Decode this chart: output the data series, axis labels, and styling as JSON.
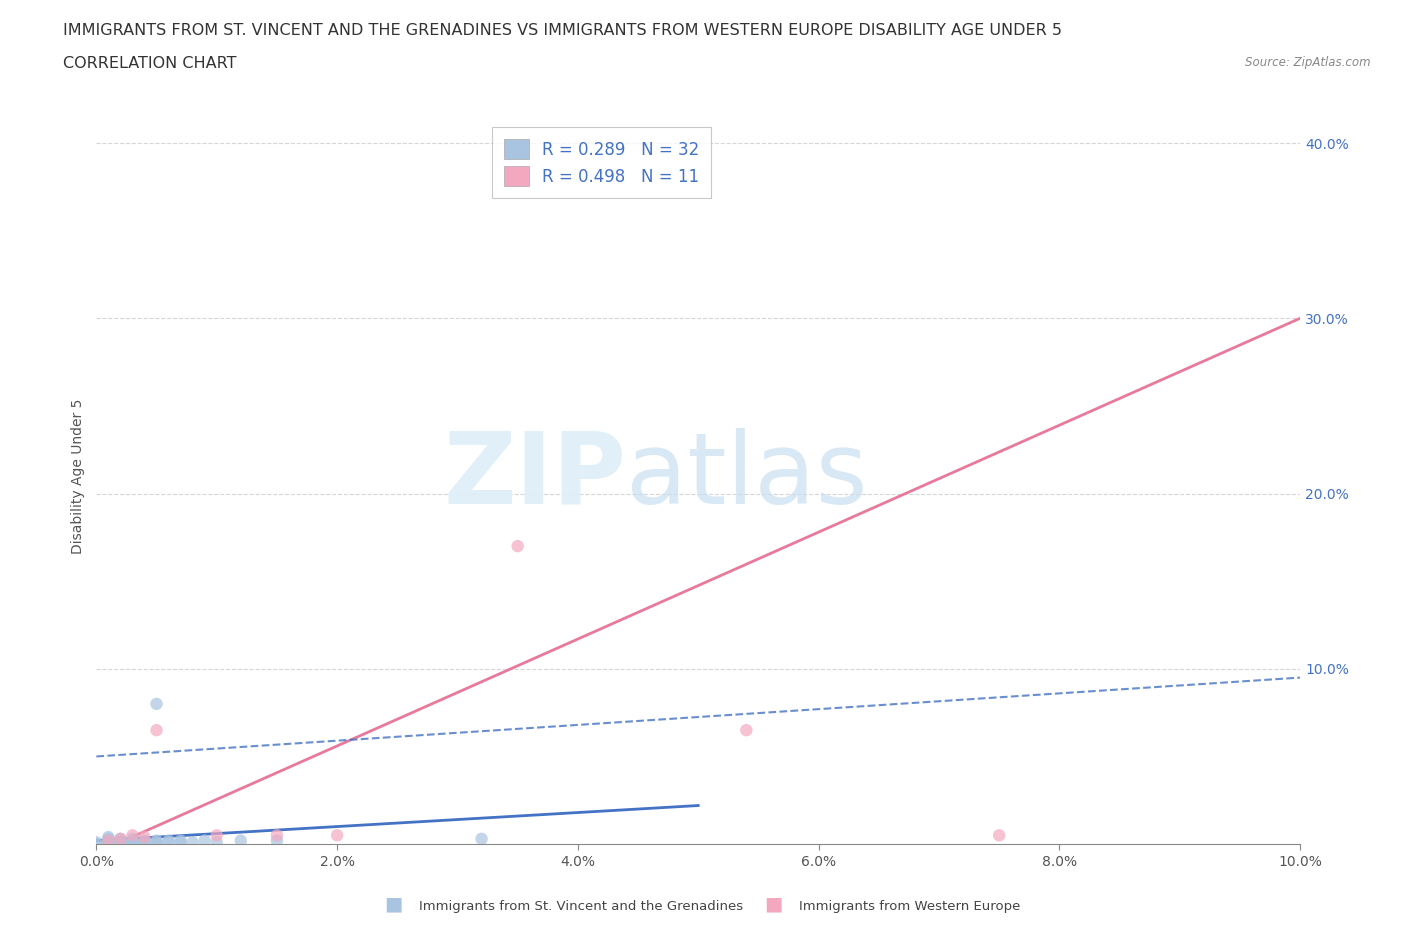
{
  "title_line1": "IMMIGRANTS FROM ST. VINCENT AND THE GRENADINES VS IMMIGRANTS FROM WESTERN EUROPE DISABILITY AGE UNDER 5",
  "title_line2": "CORRELATION CHART",
  "source_text": "Source: ZipAtlas.com",
  "ylabel": "Disability Age Under 5",
  "legend_label1": "Immigrants from St. Vincent and the Grenadines",
  "legend_label2": "Immigrants from Western Europe",
  "r1": 0.289,
  "n1": 32,
  "r2": 0.498,
  "n2": 11,
  "color1": "#a8c4e0",
  "color2": "#f4a8c0",
  "line1_color": "#4472c4",
  "line2_color": "#e8799a",
  "watermark_zip": "ZIP",
  "watermark_atlas": "atlas",
  "blue_scatter_x": [
    0.0,
    0.0,
    0.001,
    0.001,
    0.001,
    0.001,
    0.001,
    0.002,
    0.002,
    0.002,
    0.002,
    0.003,
    0.003,
    0.003,
    0.003,
    0.004,
    0.004,
    0.004,
    0.005,
    0.005,
    0.005,
    0.006,
    0.006,
    0.007,
    0.007,
    0.008,
    0.009,
    0.01,
    0.012,
    0.015,
    0.005,
    0.032
  ],
  "blue_scatter_y": [
    0.0,
    0.001,
    0.0,
    0.001,
    0.002,
    0.003,
    0.004,
    0.0,
    0.001,
    0.002,
    0.003,
    0.0,
    0.001,
    0.002,
    0.003,
    0.0,
    0.001,
    0.002,
    0.0,
    0.001,
    0.002,
    0.001,
    0.002,
    0.001,
    0.002,
    0.001,
    0.002,
    0.001,
    0.002,
    0.002,
    0.08,
    0.003
  ],
  "pink_scatter_x": [
    0.001,
    0.002,
    0.003,
    0.004,
    0.005,
    0.01,
    0.015,
    0.02,
    0.035,
    0.054,
    0.075
  ],
  "pink_scatter_y": [
    0.002,
    0.003,
    0.005,
    0.004,
    0.065,
    0.005,
    0.005,
    0.005,
    0.17,
    0.065,
    0.005
  ],
  "xlim": [
    0.0,
    0.1
  ],
  "ylim": [
    0.0,
    0.42
  ],
  "xtick_vals": [
    0.0,
    0.02,
    0.04,
    0.06,
    0.08,
    0.1
  ],
  "xtick_labels": [
    "0.0%",
    "2.0%",
    "4.0%",
    "6.0%",
    "8.0%",
    "10.0%"
  ],
  "ytick_vals": [
    0.0,
    0.1,
    0.2,
    0.3,
    0.4
  ],
  "ytick_labels": [
    "",
    "10.0%",
    "20.0%",
    "30.0%",
    "40.0%"
  ],
  "grid_color": "#cccccc",
  "bg_color": "#ffffff",
  "title_fontsize": 11.5,
  "subtitle_fontsize": 11.5,
  "axis_label_fontsize": 10,
  "tick_label_fontsize": 10
}
